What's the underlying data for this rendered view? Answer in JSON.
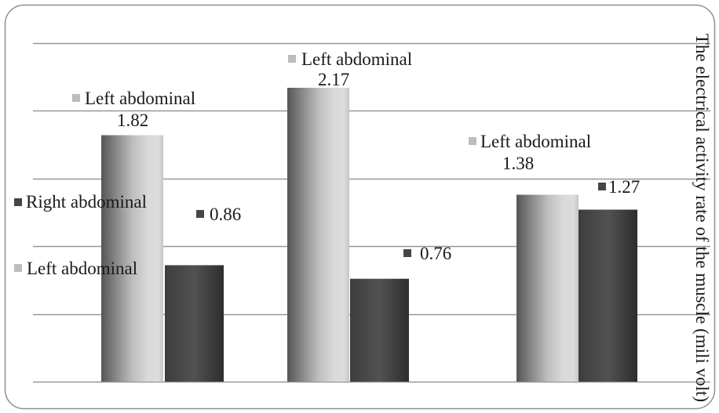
{
  "chart_data": {
    "type": "bar",
    "ylabel": "The electrical activity rate of the muscle (mili volt)",
    "ylim": [
      0,
      2.5
    ],
    "grid": true,
    "grid_step": 0.5,
    "legend": {
      "position": "left"
    },
    "series": [
      {
        "name": "Left abdominal",
        "values": [
          1.82,
          2.17,
          1.38
        ],
        "color": "#bdbdbd"
      },
      {
        "name": "Right abdominal",
        "values": [
          0.86,
          0.76,
          1.27
        ],
        "color": "#464646"
      }
    ]
  }
}
